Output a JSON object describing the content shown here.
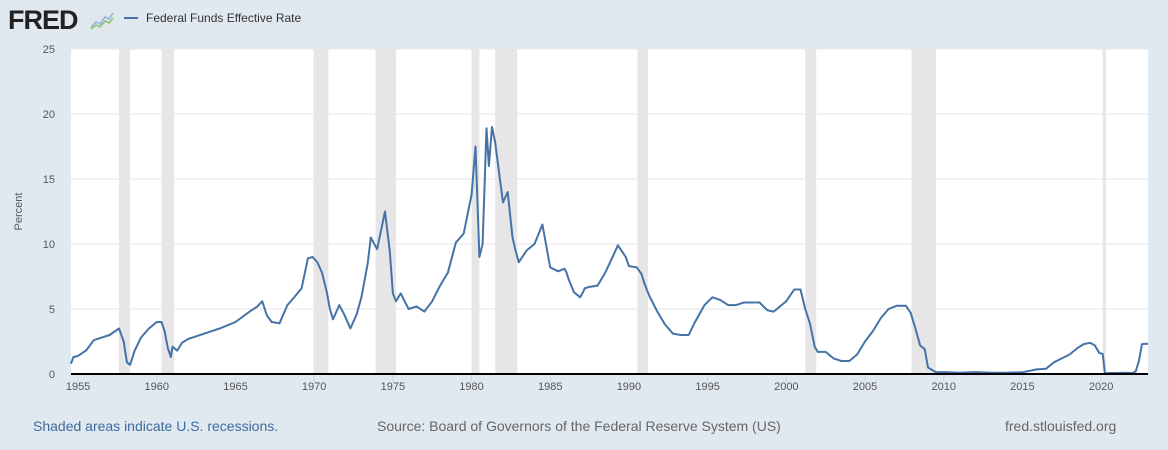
{
  "header": {
    "logo_text": "FRED",
    "logo_icon": "chart-line-icon"
  },
  "chart_data": {
    "type": "line",
    "title": "",
    "xlabel": "",
    "ylabel": "Percent",
    "xlim": [
      1954.55,
      2022.98
    ],
    "ylim": [
      0,
      25
    ],
    "grid": true,
    "legend_position": "top-left",
    "legend": [
      "Federal Funds Effective Rate"
    ],
    "series_color": "#4572a7",
    "x_ticks": [
      "1955",
      "1960",
      "1965",
      "1970",
      "1975",
      "1980",
      "1985",
      "1990",
      "1995",
      "2000",
      "2005",
      "2010",
      "2015",
      "2020"
    ],
    "x_tick_values": [
      1955,
      1960,
      1965,
      1970,
      1975,
      1980,
      1985,
      1990,
      1995,
      2000,
      2005,
      2010,
      2015,
      2020
    ],
    "y_ticks": [
      "0",
      "5",
      "10",
      "15",
      "20",
      "25"
    ],
    "y_tick_values": [
      0,
      5,
      10,
      15,
      20,
      25
    ],
    "recessions": [
      [
        1957.6,
        1958.3
      ],
      [
        1960.3,
        1961.1
      ],
      [
        1969.95,
        1970.9
      ],
      [
        1973.9,
        1975.2
      ],
      [
        1980.0,
        1980.5
      ],
      [
        1981.5,
        1982.9
      ],
      [
        1990.55,
        1991.2
      ],
      [
        2001.2,
        2001.9
      ],
      [
        2007.95,
        2009.5
      ],
      [
        2020.1,
        2020.3
      ]
    ],
    "series": [
      {
        "name": "Federal Funds Effective Rate",
        "x": [
          1954.55,
          1954.7,
          1955.0,
          1955.5,
          1956.0,
          1956.5,
          1957.0,
          1957.6,
          1957.9,
          1958.1,
          1958.3,
          1958.6,
          1959.0,
          1959.5,
          1960.0,
          1960.3,
          1960.5,
          1960.7,
          1960.9,
          1961.0,
          1961.3,
          1961.6,
          1962.0,
          1962.5,
          1963.0,
          1963.5,
          1964.0,
          1965.0,
          1965.9,
          1966.4,
          1966.7,
          1967.0,
          1967.3,
          1967.8,
          1968.3,
          1968.8,
          1969.2,
          1969.6,
          1969.9,
          1970.2,
          1970.5,
          1970.8,
          1971.0,
          1971.2,
          1971.6,
          1971.9,
          1972.3,
          1972.7,
          1973.0,
          1973.4,
          1973.6,
          1974.0,
          1974.5,
          1974.8,
          1975.0,
          1975.2,
          1975.5,
          1976.0,
          1976.5,
          1977.0,
          1977.5,
          1978.0,
          1978.5,
          1979.0,
          1979.5,
          1980.0,
          1980.25,
          1980.5,
          1980.7,
          1980.95,
          1981.1,
          1981.3,
          1981.5,
          1981.8,
          1982.0,
          1982.3,
          1982.6,
          1982.8,
          1983.0,
          1983.5,
          1984.0,
          1984.5,
          1985.0,
          1985.5,
          1985.9,
          1986.0,
          1986.2,
          1986.5,
          1986.9,
          1987.0,
          1987.2,
          1987.5,
          1988.0,
          1988.5,
          1989.0,
          1989.3,
          1989.8,
          1990.0,
          1990.5,
          1990.8,
          1991.0,
          1991.3,
          1991.8,
          1992.3,
          1992.8,
          1993.3,
          1993.8,
          1994.2,
          1994.8,
          1995.3,
          1995.8,
          1996.3,
          1996.8,
          1997.3,
          1997.8,
          1998.3,
          1998.8,
          1999.2,
          1999.6,
          2000.0,
          2000.5,
          2000.9,
          2001.2,
          2001.5,
          2001.8,
          2002.0,
          2002.5,
          2003.0,
          2003.5,
          2004.0,
          2004.5,
          2005.0,
          2005.5,
          2006.0,
          2006.5,
          2007.0,
          2007.6,
          2007.9,
          2008.2,
          2008.5,
          2008.8,
          2009.0,
          2009.5,
          2010.0,
          2011.0,
          2012.0,
          2013.0,
          2014.0,
          2015.0,
          2015.9,
          2016.5,
          2017.0,
          2017.5,
          2018.0,
          2018.5,
          2018.9,
          2019.3,
          2019.6,
          2019.9,
          2020.1,
          2020.25,
          2020.5,
          2021.0,
          2021.5,
          2022.0,
          2022.2,
          2022.4,
          2022.6,
          2022.98
        ],
        "values": [
          0.8,
          1.3,
          1.4,
          1.8,
          2.6,
          2.8,
          3.0,
          3.5,
          2.5,
          0.9,
          0.7,
          1.8,
          2.8,
          3.5,
          4.0,
          4.0,
          3.3,
          2.0,
          1.3,
          2.1,
          1.8,
          2.4,
          2.7,
          2.9,
          3.1,
          3.3,
          3.5,
          4.0,
          4.8,
          5.2,
          5.6,
          4.5,
          4.0,
          3.9,
          5.3,
          6.0,
          6.6,
          8.9,
          9.0,
          8.6,
          7.8,
          6.3,
          5.0,
          4.2,
          5.3,
          4.6,
          3.5,
          4.6,
          5.9,
          8.5,
          10.5,
          9.6,
          12.5,
          9.5,
          6.2,
          5.6,
          6.2,
          5.0,
          5.2,
          4.8,
          5.6,
          6.8,
          7.8,
          10.1,
          10.8,
          13.8,
          17.5,
          9.0,
          10.0,
          18.9,
          16.0,
          19.0,
          17.8,
          15.0,
          13.2,
          14.0,
          10.5,
          9.5,
          8.6,
          9.5,
          10.0,
          11.5,
          8.2,
          7.9,
          8.1,
          7.9,
          7.2,
          6.3,
          5.9,
          6.1,
          6.6,
          6.7,
          6.8,
          7.8,
          9.1,
          9.9,
          9.0,
          8.3,
          8.2,
          7.7,
          6.9,
          6.0,
          4.8,
          3.8,
          3.1,
          3.0,
          3.0,
          4.0,
          5.3,
          5.9,
          5.7,
          5.3,
          5.3,
          5.5,
          5.5,
          5.5,
          4.9,
          4.8,
          5.2,
          5.6,
          6.5,
          6.5,
          5.0,
          3.9,
          2.1,
          1.7,
          1.7,
          1.2,
          1.0,
          1.0,
          1.5,
          2.5,
          3.3,
          4.3,
          5.0,
          5.25,
          5.25,
          4.7,
          3.5,
          2.2,
          1.9,
          0.5,
          0.15,
          0.15,
          0.1,
          0.15,
          0.1,
          0.1,
          0.13,
          0.35,
          0.4,
          0.9,
          1.2,
          1.5,
          2.0,
          2.3,
          2.4,
          2.2,
          1.6,
          1.55,
          0.05,
          0.08,
          0.08,
          0.1,
          0.08,
          0.2,
          1.0,
          2.3,
          2.33
        ]
      }
    ]
  },
  "footer": {
    "recession_note": "Shaded areas indicate U.S. recessions.",
    "source": "Source: Board of Governors of the Federal Reserve System (US)",
    "site": "fred.stlouisfed.org"
  }
}
